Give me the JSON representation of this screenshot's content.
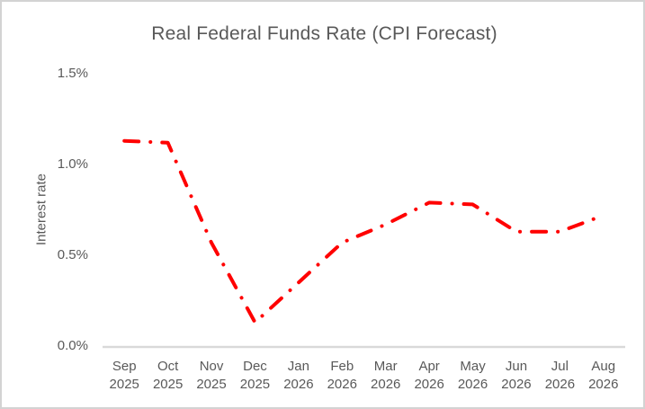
{
  "window": {
    "background_color": "#FFFFFF",
    "border_color": "#D3D3D3"
  },
  "chart_data": {
    "type": "line",
    "title": "Real Federal Funds Rate (CPI Forecast)",
    "ylabel": "Interest rate",
    "xlabel": "",
    "categories": [
      "Sep 2025",
      "Oct 2025",
      "Nov 2025",
      "Dec 2025",
      "Jan 2026",
      "Feb 2026",
      "Mar 2026",
      "Apr 2026",
      "May 2026",
      "Jun 2026",
      "Jul 2026",
      "Aug 2026"
    ],
    "values": [
      1.13,
      1.12,
      0.57,
      0.13,
      0.35,
      0.57,
      0.67,
      0.79,
      0.78,
      0.63,
      0.63,
      0.72
    ],
    "ylim": [
      0,
      1.5
    ],
    "yticks": [
      {
        "label": "0.0%",
        "value": 0.0
      },
      {
        "label": "0.5%",
        "value": 0.5
      },
      {
        "label": "1.0%",
        "value": 1.0
      },
      {
        "label": "1.5%",
        "value": 1.5
      }
    ],
    "grid": false,
    "legend": false,
    "line_color": "#FF0000",
    "line_style": "dash-dot",
    "line_width": 4,
    "axis_line_color": "#D9D9D9",
    "text_color": "#595959"
  }
}
